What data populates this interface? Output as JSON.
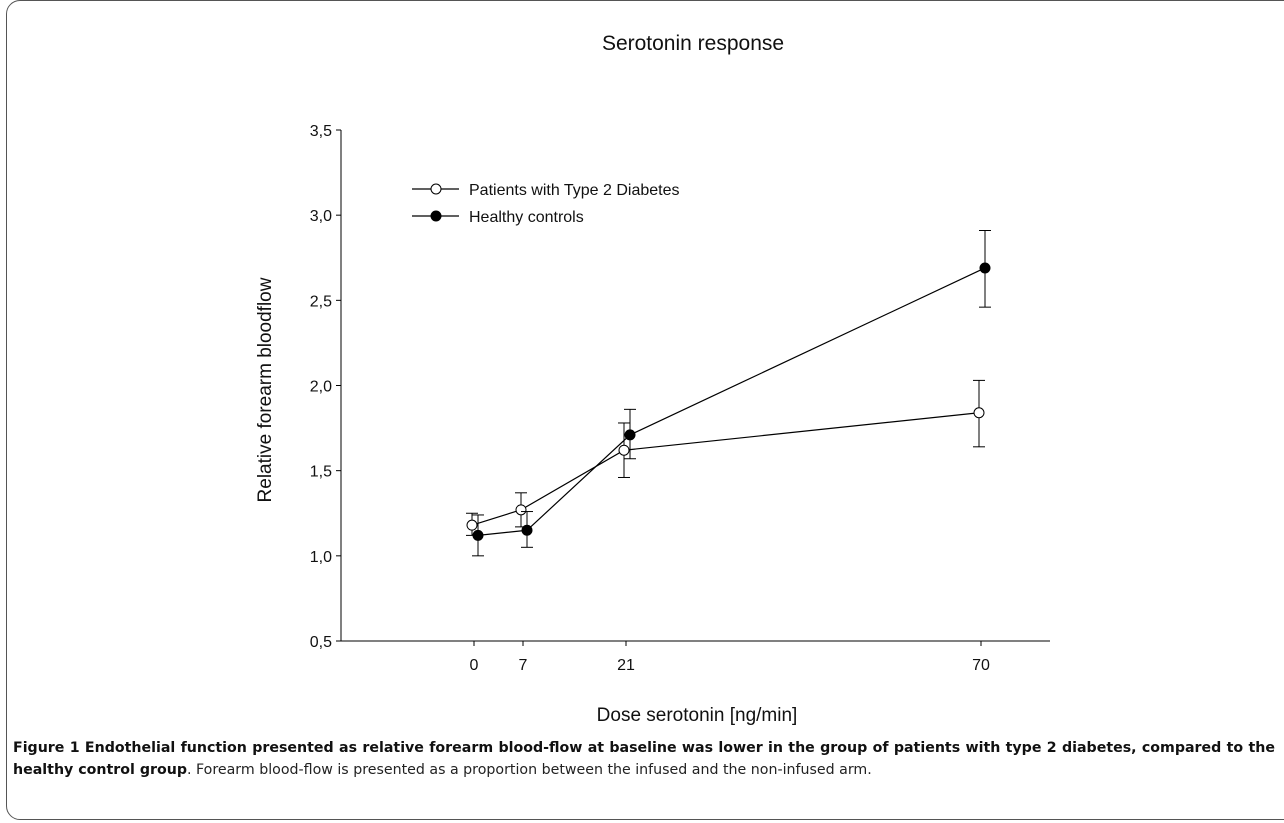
{
  "chart_data": {
    "type": "line",
    "title": "Serotonin response",
    "xlabel": "Dose serotonin [ng/min]",
    "ylabel": "Relative forearm bloodflow",
    "x_tick_labels": [
      "0",
      "7",
      "21",
      "70"
    ],
    "y_tick_labels": [
      "0,5",
      "1,0",
      "1,5",
      "2,0",
      "2,5",
      "3,0",
      "3,5"
    ],
    "ylim": [
      0.5,
      3.5
    ],
    "grid": false,
    "legend_position": "top-left",
    "series": [
      {
        "name": "Patients with Type 2 Diabetes",
        "marker": "open-circle",
        "color": "#000000",
        "points": [
          {
            "x_label": "0",
            "y": 1.18,
            "err_low": 1.12,
            "err_high": 1.25
          },
          {
            "x_label": "7",
            "y": 1.27,
            "err_low": 1.17,
            "err_high": 1.37
          },
          {
            "x_label": "21",
            "y": 1.62,
            "err_low": 1.46,
            "err_high": 1.78
          },
          {
            "x_label": "70",
            "y": 1.84,
            "err_low": 1.64,
            "err_high": 2.03
          }
        ]
      },
      {
        "name": "Healthy controls",
        "marker": "filled-circle",
        "color": "#000000",
        "points": [
          {
            "x_label": "0",
            "y": 1.12,
            "err_low": 1.0,
            "err_high": 1.24
          },
          {
            "x_label": "7",
            "y": 1.15,
            "err_low": 1.05,
            "err_high": 1.26
          },
          {
            "x_label": "21",
            "y": 1.71,
            "err_low": 1.57,
            "err_high": 1.86
          },
          {
            "x_label": "70",
            "y": 2.69,
            "err_low": 2.46,
            "err_high": 2.91
          }
        ]
      }
    ]
  },
  "caption": {
    "bold": "Figure 1 Endothelial function presented as relative forearm blood-flow at baseline was lower in the group of patients with type 2 diabetes, compared to the healthy control group",
    "rest": ". Forearm blood-flow is presented as a proportion between the infused and the non-infused arm."
  }
}
